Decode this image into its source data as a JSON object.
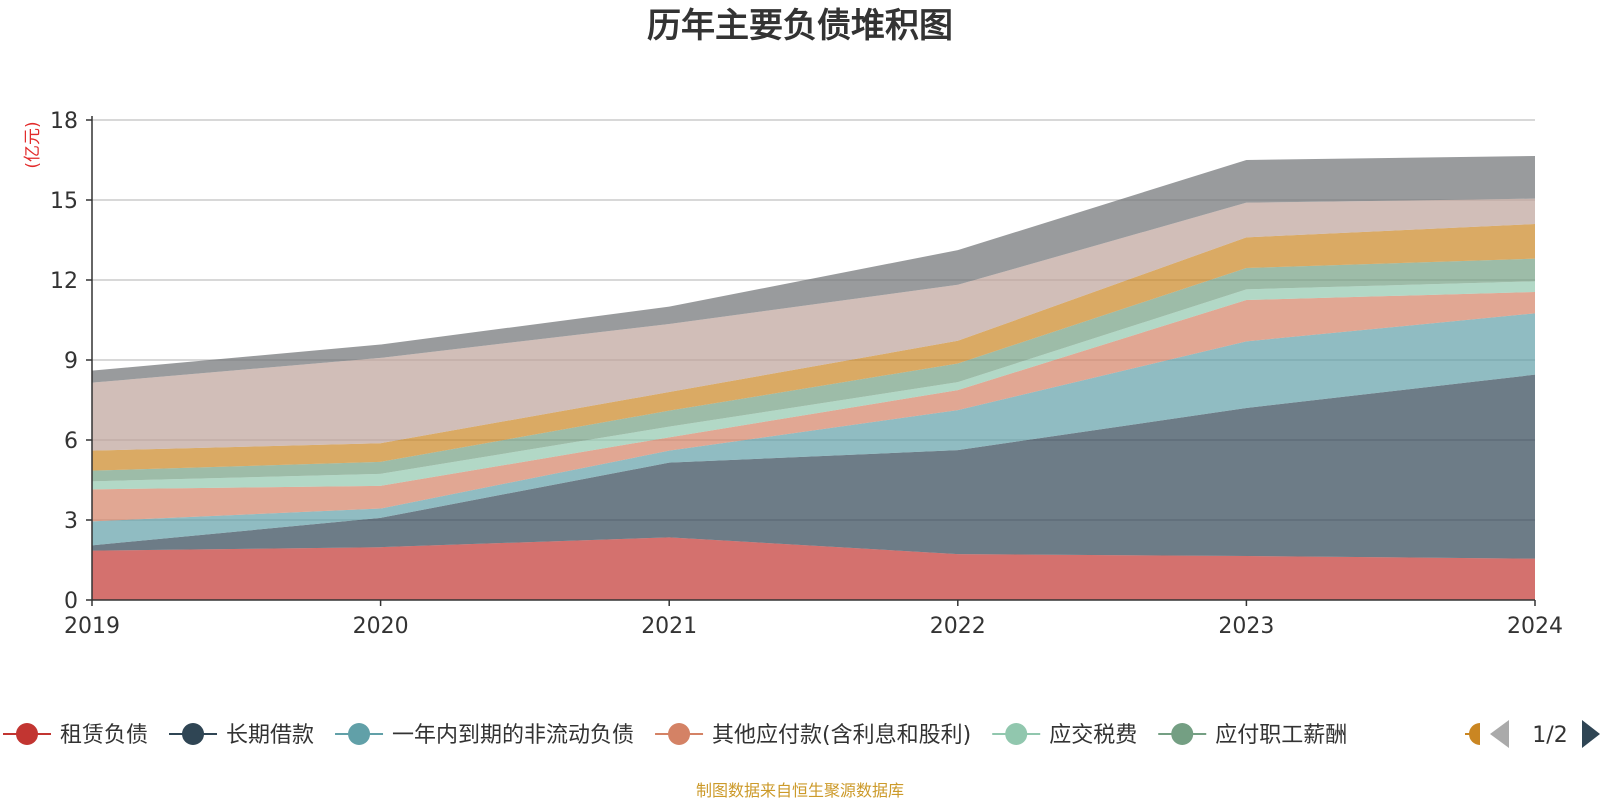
{
  "chart_data": {
    "type": "area",
    "stacked": true,
    "title": "历年主要负债堆积图",
    "unit": "(亿元)",
    "x": [
      "2019",
      "2020",
      "2021",
      "2022",
      "2023",
      "2024"
    ],
    "ylim": [
      0,
      18
    ],
    "yticks": [
      0,
      3,
      6,
      9,
      12,
      15,
      18
    ],
    "grid": true,
    "legend_position": "bottom",
    "series": [
      {
        "name": "租赁负债",
        "color": "#c23531",
        "values": [
          1.85,
          1.98,
          2.35,
          1.72,
          1.65,
          1.55
        ]
      },
      {
        "name": "长期借款",
        "color": "#2f4554",
        "values": [
          0.2,
          1.1,
          2.8,
          3.9,
          5.55,
          6.9
        ]
      },
      {
        "name": "一年内到期的非流动负债",
        "color": "#61a0a8",
        "values": [
          0.9,
          0.35,
          0.45,
          1.5,
          2.5,
          2.3
        ]
      },
      {
        "name": "其他应付款(含利息和股利)",
        "color": "#d48265",
        "values": [
          1.2,
          0.85,
          0.5,
          0.75,
          1.55,
          0.8
        ]
      },
      {
        "name": "应交税费",
        "color": "#91c7ae",
        "values": [
          0.3,
          0.45,
          0.4,
          0.3,
          0.4,
          0.4
        ]
      },
      {
        "name": "应付职工薪酬",
        "color": "#749f83",
        "values": [
          0.4,
          0.45,
          0.6,
          0.7,
          0.8,
          0.85
        ]
      },
      {
        "name": "",
        "color": "#ca8622",
        "values": [
          0.75,
          0.7,
          0.7,
          0.85,
          1.15,
          1.3
        ]
      },
      {
        "name": "",
        "color": "#bda29a",
        "values": [
          2.55,
          3.2,
          2.55,
          2.1,
          1.3,
          0.95
        ]
      },
      {
        "name": "",
        "color": "#6e7074",
        "values": [
          0.45,
          0.5,
          0.65,
          1.3,
          1.6,
          1.6
        ]
      }
    ]
  },
  "legend": {
    "page_indicator": "1/2",
    "prev_icon": "triangle-left-icon",
    "next_icon": "triangle-right-icon"
  },
  "source": "制图数据来自恒生聚源数据库"
}
